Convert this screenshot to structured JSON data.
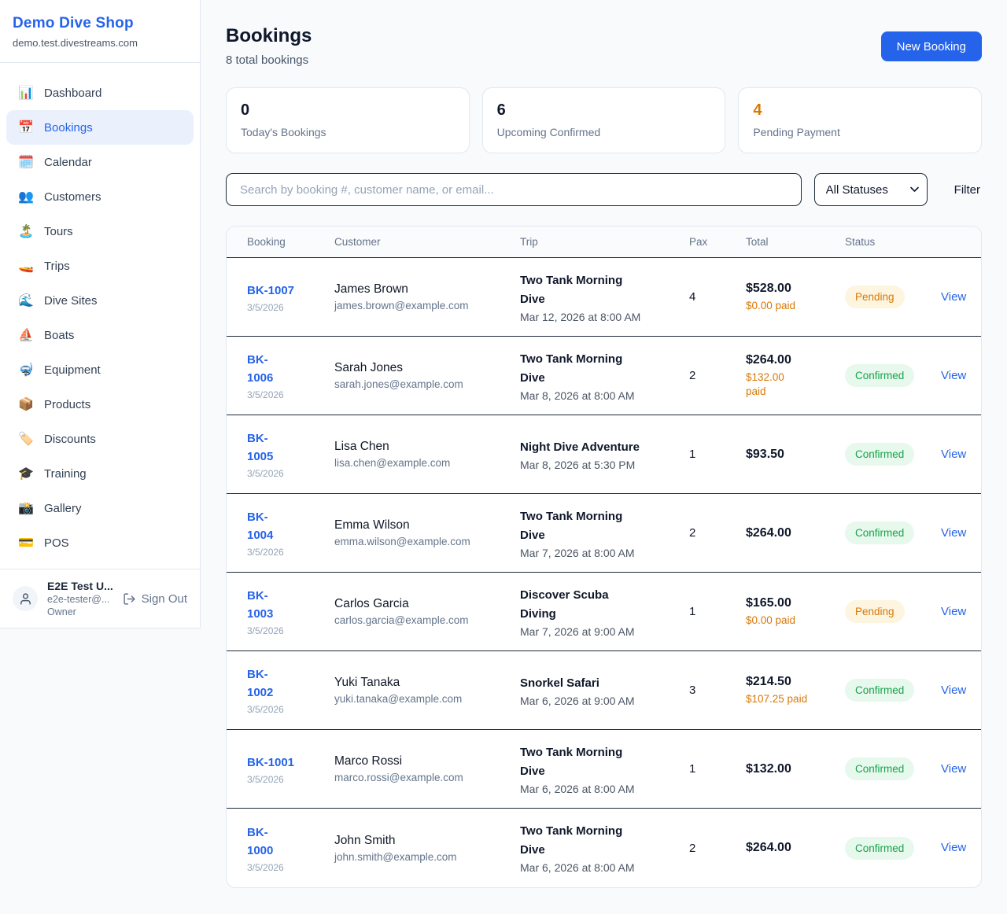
{
  "colors": {
    "accent": "#2563eb",
    "pending": "#d97706",
    "confirmed": "#16a34a"
  },
  "sidebar": {
    "shop_name": "Demo Dive Shop",
    "shop_domain": "demo.test.divestreams.com",
    "items": [
      {
        "label": "Dashboard",
        "icon": "bar-chart-icon",
        "glyph": "📊",
        "active": false
      },
      {
        "label": "Bookings",
        "icon": "calendar-icon",
        "glyph": "📅",
        "active": true
      },
      {
        "label": "Calendar",
        "icon": "spiral-calendar-icon",
        "glyph": "🗓️",
        "active": false
      },
      {
        "label": "Customers",
        "icon": "people-icon",
        "glyph": "👥",
        "active": false
      },
      {
        "label": "Tours",
        "icon": "island-icon",
        "glyph": "🏝️",
        "active": false
      },
      {
        "label": "Trips",
        "icon": "speedboat-icon",
        "glyph": "🚤",
        "active": false
      },
      {
        "label": "Dive Sites",
        "icon": "wave-icon",
        "glyph": "🌊",
        "active": false
      },
      {
        "label": "Boats",
        "icon": "sailboat-icon",
        "glyph": "⛵",
        "active": false
      },
      {
        "label": "Equipment",
        "icon": "diving-mask-icon",
        "glyph": "🤿",
        "active": false
      },
      {
        "label": "Products",
        "icon": "package-icon",
        "glyph": "📦",
        "active": false
      },
      {
        "label": "Discounts",
        "icon": "label-tag-icon",
        "glyph": "🏷️",
        "active": false
      },
      {
        "label": "Training",
        "icon": "graduation-cap-icon",
        "glyph": "🎓",
        "active": false
      },
      {
        "label": "Gallery",
        "icon": "camera-flash-icon",
        "glyph": "📸",
        "active": false
      },
      {
        "label": "POS",
        "icon": "credit-card-icon",
        "glyph": "💳",
        "active": false
      }
    ],
    "user": {
      "name": "E2E Test U...",
      "email": "e2e-tester@...",
      "role": "Owner",
      "sign_out_label": "Sign Out"
    }
  },
  "header": {
    "title": "Bookings",
    "subtitle": "8 total bookings",
    "new_booking_label": "New Booking"
  },
  "stats": [
    {
      "value": "0",
      "label": "Today's Bookings",
      "color": "#0f172a"
    },
    {
      "value": "6",
      "label": "Upcoming Confirmed",
      "color": "#0f172a"
    },
    {
      "value": "4",
      "label": "Pending Payment",
      "color": "#d97706"
    }
  ],
  "filters": {
    "search_placeholder": "Search by booking #, customer name, or email...",
    "status_selected": "All Statuses",
    "filter_label": "Filter"
  },
  "table": {
    "columns": [
      "Booking",
      "Customer",
      "Trip",
      "Pax",
      "Total",
      "Status",
      ""
    ],
    "view_label": "View",
    "rows": [
      {
        "id": "BK-1007",
        "id_wrap": false,
        "date": "3/5/2026",
        "customer": "James Brown",
        "email": "james.brown@example.com",
        "trip": "Two Tank Morning Dive",
        "trip_time": "Mar 12, 2026 at 8:00 AM",
        "pax": "4",
        "total": "$528.00",
        "paid": "$0.00 paid",
        "paid_wrap": false,
        "status": "Pending"
      },
      {
        "id": "BK-1006",
        "id_wrap": true,
        "date": "3/5/2026",
        "customer": "Sarah Jones",
        "email": "sarah.jones@example.com",
        "trip": "Two Tank Morning Dive",
        "trip_time": "Mar 8, 2026 at 8:00 AM",
        "pax": "2",
        "total": "$264.00",
        "paid": "$132.00 paid",
        "paid_wrap": true,
        "status": "Confirmed"
      },
      {
        "id": "BK-1005",
        "id_wrap": true,
        "date": "3/5/2026",
        "customer": "Lisa Chen",
        "email": "lisa.chen@example.com",
        "trip": "Night Dive Adventure",
        "trip_time": "Mar 8, 2026 at 5:30 PM",
        "pax": "1",
        "total": "$93.50",
        "paid": null,
        "paid_wrap": false,
        "status": "Confirmed"
      },
      {
        "id": "BK-1004",
        "id_wrap": true,
        "date": "3/5/2026",
        "customer": "Emma Wilson",
        "email": "emma.wilson@example.com",
        "trip": "Two Tank Morning Dive",
        "trip_time": "Mar 7, 2026 at 8:00 AM",
        "pax": "2",
        "total": "$264.00",
        "paid": null,
        "paid_wrap": false,
        "status": "Confirmed"
      },
      {
        "id": "BK-1003",
        "id_wrap": true,
        "date": "3/5/2026",
        "customer": "Carlos Garcia",
        "email": "carlos.garcia@example.com",
        "trip": "Discover Scuba Diving",
        "trip_time": "Mar 7, 2026 at 9:00 AM",
        "pax": "1",
        "total": "$165.00",
        "paid": "$0.00 paid",
        "paid_wrap": false,
        "status": "Pending"
      },
      {
        "id": "BK-1002",
        "id_wrap": true,
        "date": "3/5/2026",
        "customer": "Yuki Tanaka",
        "email": "yuki.tanaka@example.com",
        "trip": "Snorkel Safari",
        "trip_time": "Mar 6, 2026 at 9:00 AM",
        "pax": "3",
        "total": "$214.50",
        "paid": "$107.25 paid",
        "paid_wrap": false,
        "status": "Confirmed"
      },
      {
        "id": "BK-1001",
        "id_wrap": false,
        "date": "3/5/2026",
        "customer": "Marco Rossi",
        "email": "marco.rossi@example.com",
        "trip": "Two Tank Morning Dive",
        "trip_time": "Mar 6, 2026 at 8:00 AM",
        "pax": "1",
        "total": "$132.00",
        "paid": null,
        "paid_wrap": false,
        "status": "Confirmed"
      },
      {
        "id": "BK-1000",
        "id_wrap": true,
        "date": "3/5/2026",
        "customer": "John Smith",
        "email": "john.smith@example.com",
        "trip": "Two Tank Morning Dive",
        "trip_time": "Mar 6, 2026 at 8:00 AM",
        "pax": "2",
        "total": "$264.00",
        "paid": null,
        "paid_wrap": false,
        "status": "Confirmed"
      }
    ]
  }
}
